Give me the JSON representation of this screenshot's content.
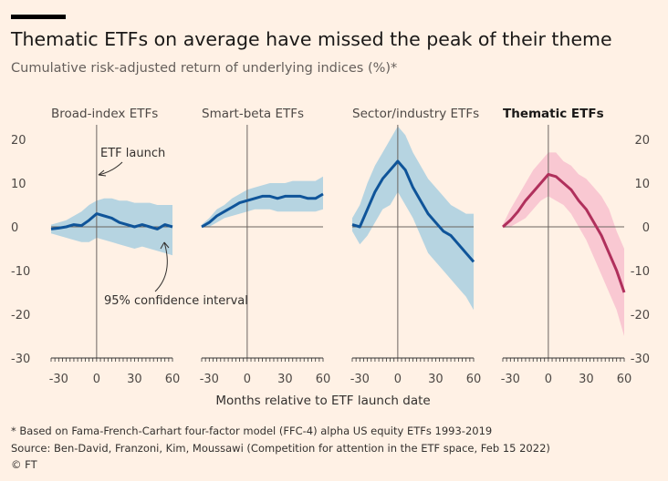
{
  "title": "Thematic ETFs on average have missed the peak of their theme",
  "subtitle": "Cumulative risk-adjusted return of underlying indices (%)*",
  "footnote": "* Based on Fama-French-Carhart four-factor model (FFC-4) alpha US equity ETFs 1993-2019",
  "source": "Source: Ben-David, Franzoni, Kim, Moussawi (Competition for attention in the ETF space, Feb 15 2022)",
  "copyright": "© FT",
  "colors": {
    "background": "#fff1e5",
    "blue_line": "#0f5499",
    "blue_band": "#a9cfe0",
    "red_line": "#b0305c",
    "red_band": "#f8c1cf",
    "axis": "#8a837d"
  },
  "chart_data": {
    "type": "line",
    "xlabel": "Months relative to ETF launch date",
    "ylabel": "",
    "xlim": [
      -36,
      60
    ],
    "ylim": [
      -30,
      20
    ],
    "xticks": [
      -30,
      0,
      30,
      60
    ],
    "xtick_labels": [
      "-30",
      "0",
      "30",
      "60"
    ],
    "yticks": [
      20,
      10,
      0,
      -10,
      -20,
      -30
    ],
    "ytick_labels": [
      "20",
      "10",
      "0",
      "-10",
      "-20",
      "-30"
    ],
    "annotations": [
      "ETF launch",
      "95% confidence interval"
    ],
    "panels": [
      {
        "name": "Broad-index ETFs",
        "color": "blue",
        "x": [
          -36,
          -30,
          -24,
          -18,
          -12,
          -6,
          0,
          6,
          12,
          18,
          24,
          30,
          36,
          42,
          48,
          54,
          60
        ],
        "y": [
          -0.5,
          -0.3,
          0,
          0.5,
          0.3,
          1.5,
          3,
          2.5,
          2,
          1,
          0.5,
          0,
          0.5,
          0,
          -0.5,
          0.5,
          0
        ],
        "lower": [
          -1.5,
          -2,
          -2.5,
          -3,
          -3.5,
          -3.5,
          -2.5,
          -3,
          -3.5,
          -4,
          -4.5,
          -5,
          -4.5,
          -5,
          -5.5,
          -6,
          -6.5
        ],
        "upper": [
          0.5,
          1,
          1.5,
          2.5,
          3.5,
          5,
          6,
          6.5,
          6.5,
          6,
          6,
          5.5,
          5.5,
          5.5,
          5,
          5,
          5
        ]
      },
      {
        "name": "Smart-beta ETFs",
        "color": "blue",
        "x": [
          -36,
          -30,
          -24,
          -18,
          -12,
          -6,
          0,
          6,
          12,
          18,
          24,
          30,
          36,
          42,
          48,
          54,
          60
        ],
        "y": [
          0,
          1,
          2.5,
          3.5,
          4.5,
          5.5,
          6,
          6.5,
          7,
          7,
          6.5,
          7,
          7,
          7,
          6.5,
          6.5,
          7.5
        ],
        "lower": [
          -0.2,
          0,
          1,
          2,
          2.5,
          3,
          3.5,
          4,
          4,
          4,
          3.5,
          3.5,
          3.5,
          3.5,
          3.5,
          3.5,
          4
        ],
        "upper": [
          0.5,
          2,
          4,
          5,
          6.5,
          7.5,
          8.5,
          9,
          9.5,
          10,
          10,
          10,
          10.5,
          10.5,
          10.5,
          10.5,
          11.5
        ]
      },
      {
        "name": "Sector/industry ETFs",
        "color": "blue",
        "x": [
          -36,
          -30,
          -24,
          -18,
          -12,
          -6,
          0,
          6,
          12,
          18,
          24,
          30,
          36,
          42,
          48,
          54,
          60
        ],
        "y": [
          0.5,
          0,
          4,
          8,
          11,
          13,
          15,
          13,
          9,
          6,
          3,
          1,
          -1,
          -2,
          -4,
          -6,
          -8
        ],
        "lower": [
          -1,
          -4,
          -2,
          1,
          4,
          5,
          8,
          5,
          2,
          -2,
          -6,
          -8,
          -10,
          -12,
          -14,
          -16,
          -19
        ],
        "upper": [
          2,
          5,
          10,
          14,
          17,
          20,
          23,
          21,
          17,
          14,
          11,
          9,
          7,
          5,
          4,
          3,
          3
        ]
      },
      {
        "name": "Thematic ETFs",
        "color": "red",
        "x": [
          -36,
          -30,
          -24,
          -18,
          -12,
          -6,
          0,
          6,
          12,
          18,
          24,
          30,
          36,
          42,
          48,
          54,
          60
        ],
        "y": [
          0,
          1.5,
          3.5,
          6,
          8,
          10,
          12,
          11.5,
          10,
          8.5,
          6,
          4,
          1,
          -2,
          -6,
          -10,
          -15
        ],
        "lower": [
          -0.3,
          0,
          1,
          2,
          4,
          6,
          7,
          6,
          5,
          3,
          0,
          -3,
          -7,
          -11,
          -15,
          -19,
          -25
        ],
        "upper": [
          0.5,
          4,
          7,
          10,
          13,
          15,
          17,
          17,
          15,
          14,
          12,
          11,
          9,
          7,
          4,
          -1,
          -5
        ]
      }
    ]
  }
}
